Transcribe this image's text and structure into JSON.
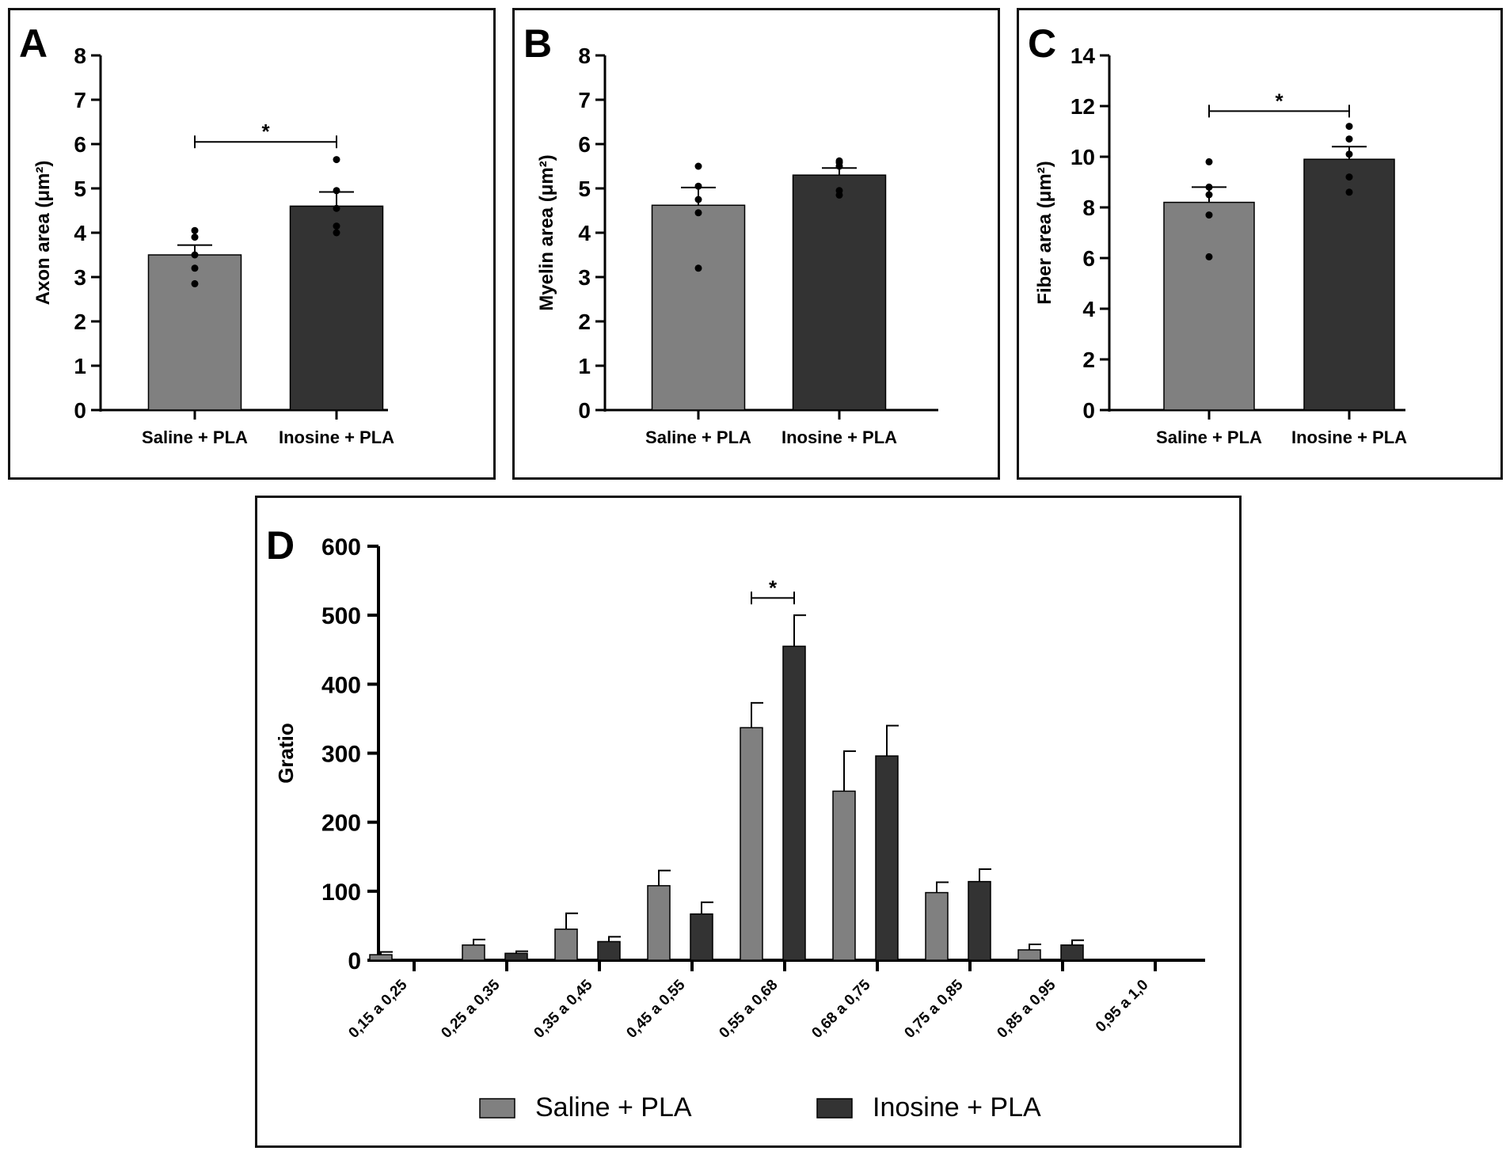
{
  "colors": {
    "saline": "#808080",
    "inosine": "#333333",
    "axis": "#000000"
  },
  "chart_data": [
    {
      "panel_letter": "A",
      "type": "bar",
      "ylabel": "Axon area (μm²)",
      "ylim": [
        0,
        8
      ],
      "ytick_labels": [
        "0",
        "1",
        "2",
        "3",
        "4",
        "5",
        "6",
        "7",
        "8"
      ],
      "categories": [
        "Saline + PLA",
        "Inosine + PLA"
      ],
      "values": [
        3.5,
        4.6
      ],
      "errors": [
        0.22,
        0.32
      ],
      "points": [
        [
          4.05,
          3.9,
          3.5,
          3.2,
          2.85
        ],
        [
          5.65,
          4.95,
          4.55,
          4.15,
          4.0
        ]
      ],
      "significance": [
        {
          "from": 0,
          "to": 1,
          "y": 6.05,
          "label": "*"
        }
      ]
    },
    {
      "panel_letter": "B",
      "type": "bar",
      "ylabel": "Myelin area (μm²)",
      "ylim": [
        0,
        8
      ],
      "ytick_labels": [
        "0",
        "1",
        "2",
        "3",
        "4",
        "5",
        "6",
        "7",
        "8"
      ],
      "categories": [
        "Saline + PLA",
        "Inosine + PLA"
      ],
      "values": [
        4.62,
        5.3
      ],
      "errors": [
        0.4,
        0.16
      ],
      "points": [
        [
          5.5,
          5.05,
          4.75,
          4.45,
          3.2
        ],
        [
          5.62,
          5.58,
          5.5,
          4.95,
          4.85
        ]
      ],
      "significance": []
    },
    {
      "panel_letter": "C",
      "type": "bar",
      "ylabel": "Fiber area (μm²)",
      "ylim": [
        0,
        14
      ],
      "ytick_labels": [
        "0",
        "2",
        "4",
        "6",
        "8",
        "10",
        "12",
        "14"
      ],
      "categories": [
        "Saline + PLA",
        "Inosine + PLA"
      ],
      "values": [
        8.2,
        9.9
      ],
      "errors": [
        0.6,
        0.5
      ],
      "points": [
        [
          9.8,
          8.8,
          8.5,
          7.7,
          6.05
        ],
        [
          11.2,
          10.7,
          10.1,
          9.2,
          8.6
        ]
      ],
      "significance": [
        {
          "from": 0,
          "to": 1,
          "y": 11.8,
          "label": "*"
        }
      ]
    },
    {
      "panel_letter": "D",
      "type": "bar",
      "ylabel": "Gratio",
      "ylim": [
        0,
        600
      ],
      "ytick_labels": [
        "0",
        "100",
        "200",
        "300",
        "400",
        "500",
        "600"
      ],
      "categories": [
        "0,15 a 0,25",
        "0,25 a 0,35",
        "0,35 a 0,45",
        "0,45 a 0,55",
        "0,55 a 0,68",
        "0,68 a 0,75",
        "0,75 a 0,85",
        "0,85 a 0,95",
        "0,95 a 1,0"
      ],
      "series": [
        {
          "name": "Saline + PLA",
          "values": [
            8,
            22,
            45,
            108,
            337,
            245,
            98,
            15,
            0
          ],
          "errors": [
            4,
            8,
            23,
            22,
            36,
            58,
            15,
            8,
            0
          ]
        },
        {
          "name": "Inosine + PLA",
          "values": [
            0,
            10,
            27,
            67,
            455,
            296,
            114,
            22,
            0
          ],
          "errors": [
            0,
            3,
            7,
            17,
            45,
            44,
            18,
            7,
            0
          ]
        }
      ],
      "significance": [
        {
          "category": 4,
          "y": 525,
          "label": "*"
        }
      ],
      "legend": [
        "Saline + PLA",
        "Inosine + PLA"
      ]
    }
  ]
}
